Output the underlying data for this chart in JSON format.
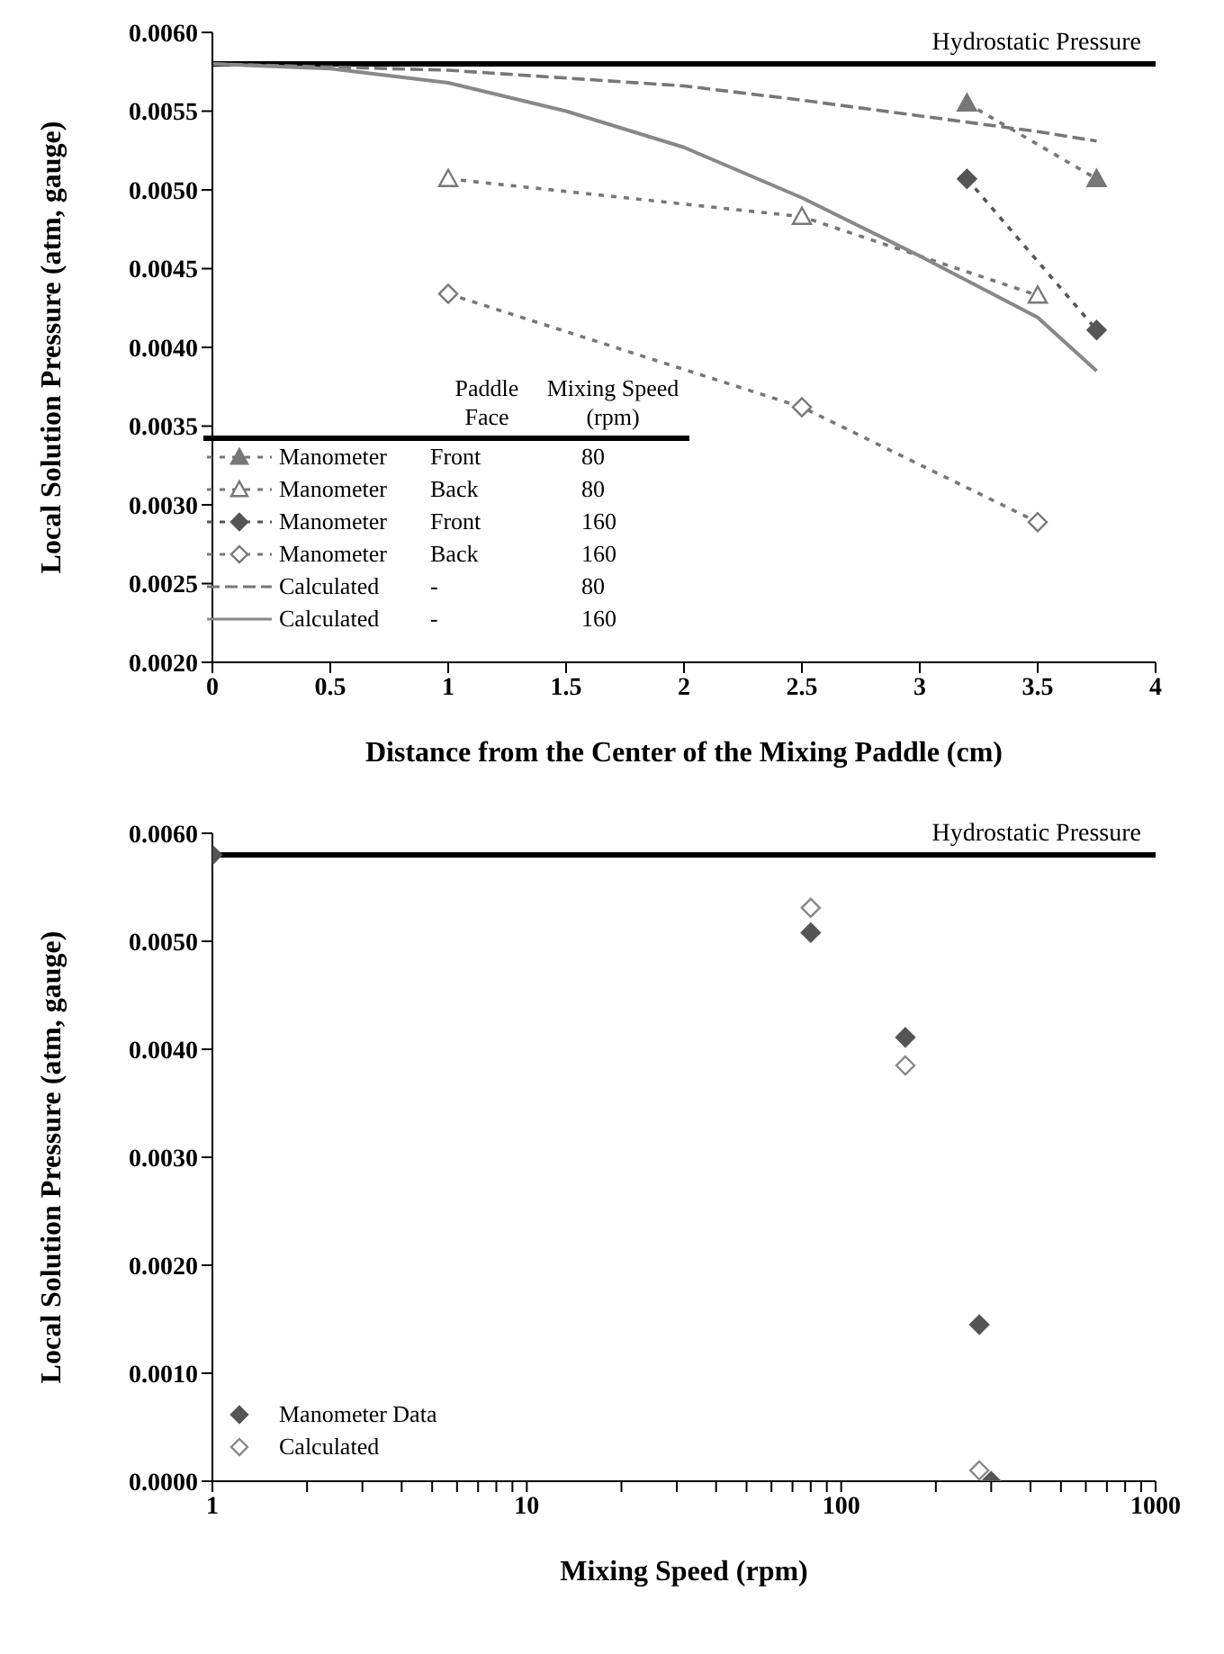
{
  "chart_data": [
    {
      "type": "line",
      "xlabel": "Distance from the Center of the Mixing Paddle (cm)",
      "ylabel": "Local Solution Pressure (atm, gauge)",
      "legend_title": "Paddle Face\tMixing Speed (rpm)",
      "legend": "bottom left",
      "grid": false,
      "xlim": [
        0,
        4
      ],
      "xticks": [
        0,
        0.5,
        1,
        1.5,
        2,
        2.5,
        3,
        3.5,
        4
      ],
      "ylim": [
        0.002,
        0.006
      ],
      "yticks": [
        {
          "value": 0.002,
          "label": "0.0020"
        },
        {
          "value": 0.0025,
          "label": "0.0025"
        },
        {
          "value": 0.003,
          "label": "0.0030"
        },
        {
          "value": 0.0035,
          "label": "0.0035"
        },
        {
          "value": 0.004,
          "label": "0.0040"
        },
        {
          "value": 0.0045,
          "label": "0.0045"
        },
        {
          "value": 0.005,
          "label": "0.0050"
        },
        {
          "value": 0.0055,
          "label": "0.0055"
        },
        {
          "value": 0.006,
          "label": "0.0060"
        }
      ],
      "ref_lines": [
        {
          "axis": "y",
          "value": 0.0058,
          "label": "Hydrostatic Pressure",
          "color": "#000000"
        }
      ],
      "series": [
        {
          "name": "Manometer\tFront\t80",
          "color": "#777777",
          "marker": "triangle",
          "colors": [
            "#777777",
            "#777777"
          ],
          "line_style": "dotted",
          "x": [
            3.2,
            3.75
          ],
          "values": [
            0.00555,
            0.00507
          ]
        },
        {
          "name": "Manometer\tBack\t80",
          "color": "#777777",
          "marker": "triangle",
          "colors": [
            "#ffffff",
            "#ffffff",
            "#ffffff"
          ],
          "line_style": "dotted",
          "x": [
            1,
            2.5,
            3.5
          ],
          "values": [
            0.00507,
            0.00483,
            0.00433
          ]
        },
        {
          "name": "Manometer\tFront\t160",
          "color": "#555555",
          "marker": "diamond",
          "colors": [
            "#555555",
            "#555555"
          ],
          "line_style": "dotted",
          "x": [
            3.2,
            3.75
          ],
          "values": [
            0.00507,
            0.00411
          ]
        },
        {
          "name": "Manometer\tBack\t160",
          "color": "#777777",
          "marker": "diamond",
          "colors": [
            "#ffffff",
            "#ffffff",
            "#ffffff"
          ],
          "line_style": "dotted",
          "x": [
            1,
            2.5,
            3.5
          ],
          "values": [
            0.00434,
            0.00362,
            0.00289
          ]
        },
        {
          "name": "Calculated\t-\t80",
          "color": "#777777",
          "marker": "none",
          "line_style": "dashed",
          "x": [
            0,
            1,
            2,
            2.5,
            3,
            3.5,
            3.75
          ],
          "values": [
            0.0058,
            0.00576,
            0.00566,
            0.00557,
            0.00547,
            0.00537,
            0.00531
          ]
        },
        {
          "name": "Calculated\t-\t160",
          "color": "#888888",
          "marker": "none",
          "line_style": "solid",
          "x": [
            0,
            0.5,
            1,
            1.5,
            2,
            2.5,
            3,
            3.5,
            3.75
          ],
          "values": [
            0.0058,
            0.00577,
            0.00568,
            0.0055,
            0.00527,
            0.00495,
            0.00458,
            0.00419,
            0.00385
          ]
        }
      ]
    },
    {
      "type": "scatter",
      "xlabel": "Mixing Speed (rpm)",
      "ylabel": "Local Solution Pressure (atm, gauge)",
      "legend": "bottom left",
      "grid": false,
      "log": "x",
      "xlim": [
        1,
        1000
      ],
      "xticks": [
        1,
        {
          "value": 2,
          "label": null
        },
        {
          "value": 3,
          "label": null
        },
        {
          "value": 4,
          "label": null
        },
        {
          "value": 5,
          "label": null
        },
        {
          "value": 6,
          "label": null
        },
        {
          "value": 7,
          "label": null
        },
        {
          "value": 8,
          "label": null
        },
        {
          "value": 9,
          "label": null
        },
        10,
        {
          "value": 20,
          "label": null
        },
        {
          "value": 30,
          "label": null
        },
        {
          "value": 40,
          "label": null
        },
        {
          "value": 50,
          "label": null
        },
        {
          "value": 60,
          "label": null
        },
        {
          "value": 70,
          "label": null
        },
        {
          "value": 80,
          "label": null
        },
        {
          "value": 90,
          "label": null
        },
        100,
        {
          "value": 200,
          "label": null
        },
        {
          "value": 300,
          "label": null
        },
        {
          "value": 400,
          "label": null
        },
        {
          "value": 500,
          "label": null
        },
        {
          "value": 600,
          "label": null
        },
        {
          "value": 700,
          "label": null
        },
        {
          "value": 800,
          "label": null
        },
        {
          "value": 900,
          "label": null
        },
        1000
      ],
      "ylim": [
        0,
        0.006
      ],
      "yticks": [
        {
          "value": 0,
          "label": "0.0000"
        },
        {
          "value": 0.001,
          "label": "0.0010"
        },
        {
          "value": 0.002,
          "label": "0.0020"
        },
        {
          "value": 0.003,
          "label": "0.0030"
        },
        {
          "value": 0.004,
          "label": "0.0040"
        },
        {
          "value": 0.005,
          "label": "0.0050"
        },
        {
          "value": 0.006,
          "label": "0.0060"
        }
      ],
      "ref_lines": [
        {
          "axis": "y",
          "value": 0.0058,
          "label": "Hydrostatic Pressure",
          "color": "#000000"
        }
      ],
      "series": [
        {
          "name": "Manometer Data",
          "color": "#555555",
          "marker": "diamond",
          "colors": [
            "#555555",
            "#555555",
            "#555555",
            "#555555",
            "#555555"
          ],
          "x": [
            1,
            80,
            160,
            275,
            300
          ],
          "values": [
            0.0058,
            0.00508,
            0.00411,
            0.00145,
            0
          ]
        },
        {
          "name": "Calculated",
          "color": "#888888",
          "marker": "diamond",
          "colors": [
            "#ffffff",
            "#ffffff",
            "#ffffff"
          ],
          "x": [
            80,
            160,
            275
          ],
          "values": [
            0.00531,
            0.00385,
            0.0001
          ]
        }
      ]
    }
  ]
}
